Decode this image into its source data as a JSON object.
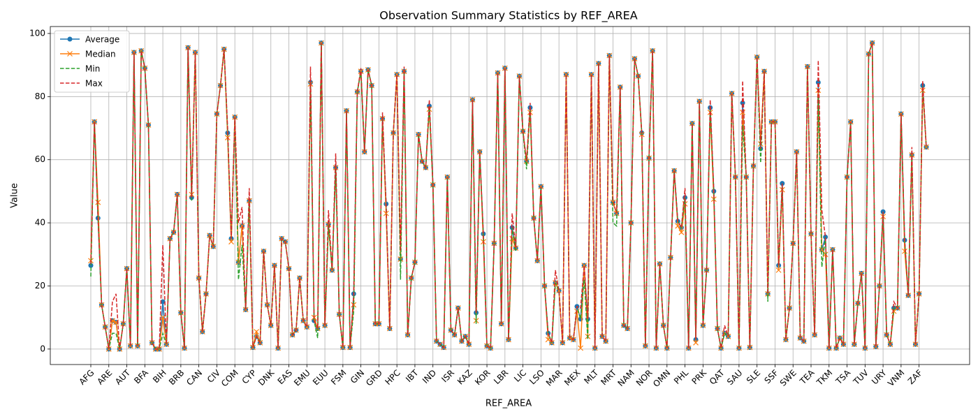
{
  "chart_data": {
    "type": "line",
    "title": "Observation Summary Statistics by REF_AREA",
    "x_label": "REF_AREA",
    "y_label": "Value",
    "categories": [
      "AFG",
      null,
      null,
      null,
      null,
      "ARE",
      null,
      null,
      null,
      null,
      "AUT",
      null,
      null,
      null,
      null,
      "BFA",
      null,
      null,
      null,
      null,
      "BIH",
      null,
      null,
      null,
      null,
      "BRB",
      null,
      null,
      null,
      null,
      "CAN",
      null,
      null,
      null,
      null,
      "CIV",
      null,
      null,
      null,
      null,
      "COM",
      null,
      null,
      null,
      null,
      "CYP",
      null,
      null,
      null,
      null,
      "DNK",
      null,
      null,
      null,
      null,
      "EAS",
      null,
      null,
      null,
      null,
      "EMU",
      null,
      null,
      null,
      null,
      "EUU",
      null,
      null,
      null,
      null,
      "FSM",
      null,
      null,
      null,
      null,
      "GIN",
      null,
      null,
      null,
      null,
      "GRD",
      null,
      null,
      null,
      null,
      "HPC",
      null,
      null,
      null,
      null,
      "IBT",
      null,
      null,
      null,
      null,
      "IND",
      null,
      null,
      null,
      null,
      "ISR",
      null,
      null,
      null,
      null,
      "KAZ",
      null,
      null,
      null,
      null,
      "KOR",
      null,
      null,
      null,
      null,
      "LBR",
      null,
      null,
      null,
      null,
      "LIC",
      null,
      null,
      null,
      null,
      "LSO",
      null,
      null,
      null,
      null,
      "MAR",
      null,
      null,
      null,
      null,
      "MEX",
      null,
      null,
      null,
      null,
      "MLT",
      null,
      null,
      null,
      null,
      "MRT",
      null,
      null,
      null,
      null,
      "NAM",
      null,
      null,
      null,
      null,
      "NOR",
      null,
      null,
      null,
      null,
      "OMN",
      null,
      null,
      null,
      null,
      "PHL",
      null,
      null,
      null,
      null,
      "PRK",
      null,
      null,
      null,
      null,
      "QAT",
      null,
      null,
      null,
      null,
      "SAU",
      null,
      null,
      null,
      null,
      "SLE",
      null,
      null,
      null,
      null,
      "SSF",
      null,
      null,
      null,
      null,
      "SWE",
      null,
      null,
      null,
      null,
      "TEA",
      null,
      null,
      null,
      null,
      "TKM",
      null,
      null,
      null,
      null,
      "TSA",
      null,
      null,
      null,
      null,
      "TUV",
      null,
      null,
      null,
      null,
      "URY",
      null,
      null,
      null,
      null,
      "VNM",
      null,
      null,
      null,
      null,
      "ZAF",
      null,
      null
    ],
    "series": [
      {
        "name": "Average",
        "color": "#1f77b4",
        "linestyle": "solid",
        "marker": "circle",
        "values": [
          26.5,
          72,
          41.5,
          14,
          7,
          0,
          9,
          8.5,
          0,
          8,
          25.5,
          1,
          94,
          1,
          94.5,
          89,
          71,
          2,
          0,
          0,
          15,
          1.5,
          35,
          37,
          49,
          11.5,
          0.3,
          95.5,
          48,
          94,
          22.5,
          5.5,
          17.5,
          36,
          32.5,
          74.5,
          83.5,
          95,
          68.5,
          35,
          73.5,
          27.5,
          39,
          12.5,
          47,
          0.5,
          4,
          2,
          31,
          14,
          7.5,
          26.5,
          0.3,
          35,
          34,
          25.5,
          4.5,
          6,
          22.5,
          9,
          7,
          84.5,
          9,
          6.5,
          97,
          7.5,
          39.5,
          25,
          57.5,
          11,
          0.5,
          75.5,
          0.5,
          17.5,
          81.5,
          88,
          62.5,
          88.5,
          83.5,
          8,
          8,
          73,
          46,
          6.5,
          68.5,
          87,
          28.5,
          88,
          4.5,
          22.5,
          27.5,
          68,
          59.5,
          57.5,
          77,
          52,
          2.5,
          1.5,
          0.5,
          54.5,
          6,
          4.5,
          13,
          2.5,
          4,
          1.5,
          79,
          11.5,
          62.5,
          36.5,
          1,
          0.3,
          33.5,
          87.5,
          8,
          89,
          3,
          38.5,
          32,
          86.5,
          69,
          59.5,
          76.5,
          41.5,
          28,
          51.5,
          20,
          5,
          2,
          21,
          18.5,
          2,
          87,
          3.5,
          3,
          13.5,
          9.5,
          26.5,
          9.5,
          87,
          0.3,
          90.5,
          4,
          2.5,
          93,
          46.5,
          43,
          83,
          7.5,
          6.5,
          40,
          92,
          86.5,
          68.5,
          1,
          60.5,
          94.5,
          0.3,
          27,
          7.5,
          0.3,
          29,
          56.5,
          40.5,
          38.5,
          48,
          0.3,
          71.5,
          3,
          78.5,
          7.5,
          25,
          76.5,
          50,
          6.5,
          0.3,
          5,
          4,
          81,
          54.5,
          0.3,
          78,
          54.5,
          0.5,
          58,
          92.5,
          63.5,
          88,
          17.5,
          72,
          72,
          26.5,
          52.5,
          3,
          13,
          33.5,
          62.5,
          3.5,
          2.5,
          89.5,
          36.5,
          4.5,
          84.5,
          31.5,
          35.5,
          0.3,
          31.5,
          0.3,
          3.5,
          1.5,
          54.5,
          72,
          1.5,
          14.5,
          24,
          0.3,
          93.5,
          97,
          0.8,
          20,
          43.5,
          4.5,
          1.5,
          13,
          13,
          74.5,
          34.5,
          17,
          61.5,
          1.5,
          17.5,
          83.5,
          64
        ]
      },
      {
        "name": "Median",
        "color": "#ff7f0e",
        "linestyle": "solid",
        "marker": "x",
        "values": [
          28,
          72,
          46.5,
          14,
          7,
          0,
          9,
          8.5,
          0,
          8,
          25.5,
          1,
          94,
          1,
          94.5,
          89,
          71,
          2,
          0,
          0,
          10,
          1.5,
          35,
          37,
          49,
          11.5,
          0.3,
          95.5,
          49,
          94,
          22.5,
          5.5,
          17.5,
          36,
          32.5,
          74.5,
          83.5,
          95,
          67,
          34,
          73.5,
          27.5,
          39,
          12.5,
          47,
          0.5,
          5.5,
          2,
          31,
          14,
          7.5,
          26.5,
          0.3,
          35,
          34,
          25.5,
          4.5,
          6,
          22.5,
          9,
          7,
          84,
          10,
          6.5,
          97,
          7.5,
          39.5,
          25,
          57.5,
          11,
          0.5,
          75.5,
          0.5,
          14,
          81.5,
          88,
          62.5,
          88.5,
          83.5,
          8,
          8,
          73,
          43,
          6.5,
          68.5,
          87,
          28.5,
          88,
          4.5,
          22.5,
          27.5,
          68,
          59.5,
          57.5,
          76,
          52,
          2.5,
          1.5,
          0.5,
          54.5,
          6,
          4.5,
          13,
          2.5,
          4,
          1.5,
          79,
          9,
          62.5,
          34,
          1,
          0.3,
          33.5,
          87.5,
          8,
          89,
          3,
          35,
          32,
          86.5,
          69,
          59.5,
          75,
          41.5,
          28,
          51.5,
          20,
          3,
          2,
          21,
          18.5,
          2,
          87,
          3.5,
          3,
          12,
          0.3,
          26.5,
          4,
          87,
          0.3,
          90.5,
          4,
          2.5,
          93,
          46.5,
          43,
          83,
          7.5,
          6.5,
          40,
          92,
          86.5,
          68,
          1,
          60.5,
          94.5,
          0.3,
          27,
          7.5,
          0.3,
          29,
          56.5,
          39,
          37,
          46,
          0.3,
          71.5,
          2,
          78.5,
          7.5,
          25,
          75,
          47.5,
          6.5,
          0.3,
          5,
          4,
          81,
          54.5,
          0.3,
          75,
          54.5,
          0.5,
          58,
          92.5,
          65,
          88,
          17.5,
          72,
          72,
          25,
          50.5,
          3,
          13,
          33.5,
          62.5,
          3.5,
          2.5,
          89.5,
          36.5,
          4.5,
          82,
          31.5,
          30,
          0.3,
          31.5,
          0.3,
          3.5,
          1.5,
          54.5,
          72,
          1.5,
          14.5,
          24,
          0.3,
          93.5,
          97,
          0.8,
          20,
          42,
          4.5,
          1.5,
          12,
          13,
          74.5,
          31,
          17,
          61.5,
          1.5,
          17.5,
          82,
          64
        ]
      },
      {
        "name": "Min",
        "color": "#2ca02c",
        "linestyle": "dashed",
        "marker": "none",
        "values": [
          23,
          72,
          41.5,
          14,
          7,
          0,
          5,
          5,
          0,
          8,
          25.5,
          1,
          94,
          1,
          94.5,
          89,
          71,
          2,
          0,
          0,
          5,
          1.5,
          35,
          37,
          49,
          11.5,
          0.3,
          95.5,
          47,
          94,
          22.5,
          5.5,
          17.5,
          36,
          32.5,
          74.5,
          83.5,
          95,
          68.5,
          35,
          73.5,
          22,
          33,
          12.5,
          47,
          0.5,
          4,
          2,
          31,
          14,
          7.5,
          26.5,
          0.3,
          35,
          34,
          25.5,
          4.5,
          6,
          22.5,
          9,
          7,
          84.5,
          9,
          3.5,
          97,
          7.5,
          39.5,
          25,
          57.5,
          11,
          0.5,
          75.5,
          0.5,
          12,
          81.5,
          88,
          62.5,
          88.5,
          83.5,
          8,
          8,
          73,
          46,
          6.5,
          68.5,
          87,
          22,
          88,
          4.5,
          22.5,
          27.5,
          68,
          59.5,
          57.5,
          77,
          52,
          2.5,
          1.5,
          0.5,
          54.5,
          6,
          4.5,
          13,
          2.5,
          4,
          1.5,
          79,
          8,
          62.5,
          36.5,
          1,
          0.3,
          33.5,
          87.5,
          8,
          89,
          3,
          38.5,
          31,
          86.5,
          69,
          57,
          76.5,
          41.5,
          28,
          51.5,
          20,
          5,
          2,
          21,
          18.5,
          2,
          87,
          3.5,
          3,
          13.5,
          9.5,
          22,
          3,
          87,
          0.3,
          90.5,
          4,
          2.5,
          93,
          40,
          39,
          83,
          7.5,
          6.5,
          40,
          92,
          86.5,
          68.5,
          1,
          60.5,
          94.5,
          0.3,
          27,
          7.5,
          0.3,
          29,
          56.5,
          40.5,
          38.5,
          48,
          0.3,
          71.5,
          3,
          78.5,
          7.5,
          25,
          76.5,
          50,
          6.5,
          0.3,
          5,
          4,
          81,
          54.5,
          0.3,
          71,
          54.5,
          0.5,
          58,
          92.5,
          59,
          88,
          15,
          72,
          72,
          26.5,
          52.5,
          3,
          13,
          33.5,
          62.5,
          3.5,
          2.5,
          89.5,
          36.5,
          4.5,
          80,
          26,
          35.5,
          0.3,
          31.5,
          0.3,
          3.5,
          1.5,
          54.5,
          72,
          1.5,
          14.5,
          24,
          0.3,
          93.5,
          97,
          0.8,
          20,
          43.5,
          4.5,
          1.5,
          13,
          13,
          74.5,
          34.5,
          17,
          61.5,
          1.5,
          17.5,
          83.5,
          64
        ]
      },
      {
        "name": "Max",
        "color": "#d62728",
        "linestyle": "dashed",
        "marker": "none",
        "values": [
          27,
          72,
          41.5,
          14,
          7,
          0,
          15,
          17.5,
          0,
          8,
          25.5,
          1,
          94,
          1,
          94.5,
          89,
          71,
          2,
          0,
          0,
          33,
          1.5,
          35,
          37,
          49,
          11.5,
          0.3,
          95.5,
          48,
          94,
          22.5,
          5.5,
          17.5,
          36,
          32.5,
          74.5,
          83.5,
          95,
          70,
          35,
          73.5,
          40,
          45,
          12.5,
          51,
          0.5,
          4,
          2,
          31,
          14,
          7.5,
          26.5,
          0.3,
          35,
          34,
          25.5,
          4.5,
          6,
          22.5,
          9,
          7,
          89.5,
          9,
          6.5,
          97,
          7.5,
          44,
          25,
          62,
          11,
          0.5,
          75.5,
          0.5,
          17.5,
          81.5,
          89,
          62.5,
          88.5,
          83.5,
          8,
          8,
          75,
          46,
          6.5,
          68.5,
          87,
          31,
          89.5,
          4.5,
          22.5,
          27.5,
          68,
          59.5,
          57.5,
          79,
          52,
          2.5,
          1.5,
          0.5,
          54.5,
          6,
          4.5,
          13,
          2.5,
          4,
          1.5,
          79,
          11.5,
          62.5,
          36.5,
          1,
          0.3,
          33.5,
          87.5,
          8,
          89,
          3,
          43,
          32,
          86.5,
          69,
          59.5,
          78,
          41.5,
          28,
          51.5,
          20,
          5,
          2,
          25,
          18.5,
          2,
          87,
          3.5,
          3,
          13.5,
          13,
          26.5,
          9.5,
          87,
          0.3,
          90.5,
          4,
          2.5,
          93,
          47,
          43,
          83,
          7.5,
          6.5,
          40,
          92,
          86.5,
          68.5,
          1,
          60.5,
          94.5,
          0.3,
          27,
          7.5,
          0.3,
          29,
          56.5,
          40.5,
          38.5,
          51,
          0.3,
          71.5,
          3,
          78.5,
          7.5,
          25,
          79,
          50,
          6.5,
          0.3,
          7.5,
          4,
          81,
          54.5,
          0.3,
          85,
          54.5,
          0.5,
          58,
          92.5,
          63.5,
          88,
          17.5,
          72,
          72,
          26.5,
          52.5,
          3,
          13,
          33.5,
          62.5,
          3.5,
          2.5,
          89.5,
          36.5,
          4.5,
          91.5,
          44,
          35.5,
          0.3,
          31.5,
          0.3,
          3.5,
          1.5,
          54.5,
          72,
          1.5,
          14.5,
          24,
          0.3,
          93.5,
          97,
          0.8,
          20,
          43.5,
          4.5,
          1.5,
          15,
          13,
          74.5,
          34.5,
          17,
          64,
          1.5,
          17.5,
          85,
          64
        ]
      }
    ],
    "ylim": [
      -4.9,
      102.2
    ],
    "yticks": [
      0,
      20,
      40,
      60,
      80,
      100
    ],
    "grid": true,
    "legend": "upper left"
  }
}
